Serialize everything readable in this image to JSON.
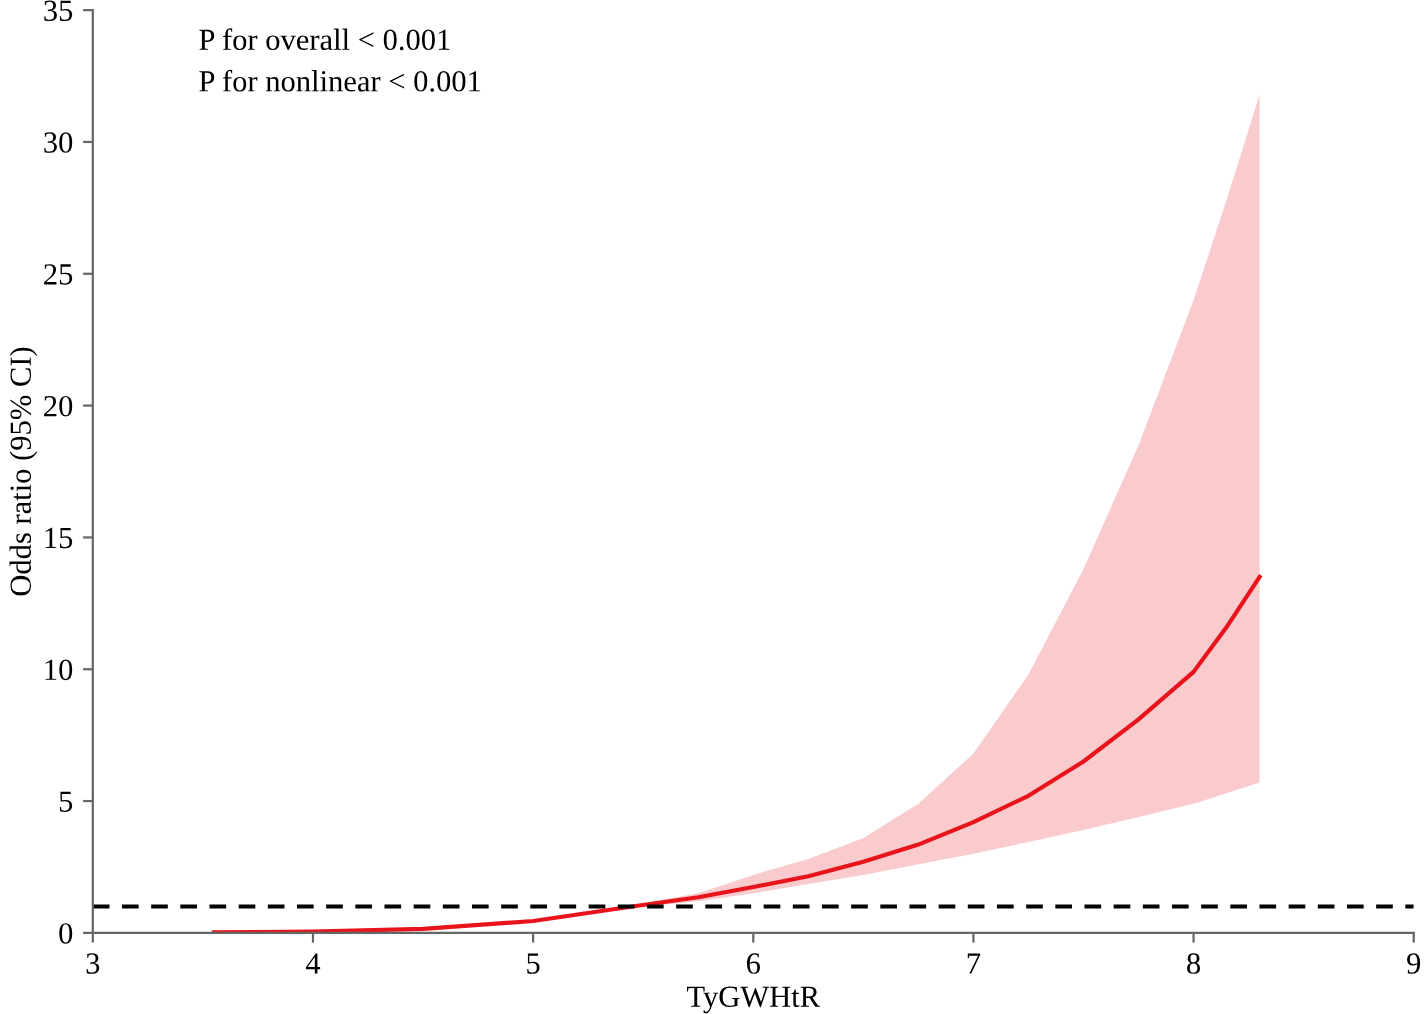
{
  "chart_data": {
    "type": "line",
    "xlabel": "TyGWHtR",
    "ylabel": "Odds ratio (95% CI)",
    "annotations": [
      "P for overall < 0.001",
      "P for nonlinear < 0.001"
    ],
    "xlim": [
      3,
      9
    ],
    "ylim": [
      0,
      35
    ],
    "xticks": [
      3,
      4,
      5,
      6,
      7,
      8,
      9
    ],
    "yticks": [
      0,
      5,
      10,
      15,
      20,
      25,
      30,
      35
    ],
    "grid": false,
    "legend": false,
    "series": [
      {
        "color": "#e8141b",
        "x": [
          3.55,
          4,
          4.5,
          5,
          5.45,
          5.75,
          6,
          6.25,
          6.5,
          6.75,
          7,
          7.25,
          7.5,
          7.75,
          8,
          8.15,
          8.3
        ],
        "values": [
          0.02,
          0.05,
          0.15,
          0.45,
          1.0,
          1.35,
          1.74,
          2.15,
          2.7,
          3.35,
          4.2,
          5.2,
          6.5,
          8.1,
          9.9,
          11.6,
          13.5
        ],
        "lower": [
          0.02,
          0.05,
          0.14,
          0.42,
          0.95,
          1.2,
          1.5,
          1.85,
          2.2,
          2.6,
          3.0,
          3.45,
          3.9,
          4.4,
          4.9,
          5.3,
          5.7
        ],
        "upper": [
          0.02,
          0.05,
          0.16,
          0.48,
          1.05,
          1.5,
          2.2,
          2.8,
          3.6,
          4.9,
          6.8,
          9.8,
          13.8,
          18.5,
          24,
          27.8,
          31.8
        ]
      }
    ],
    "ref_lines": [
      {
        "axis": "y",
        "value": 1,
        "color": "#000000",
        "line_style": "dashed"
      }
    ]
  }
}
